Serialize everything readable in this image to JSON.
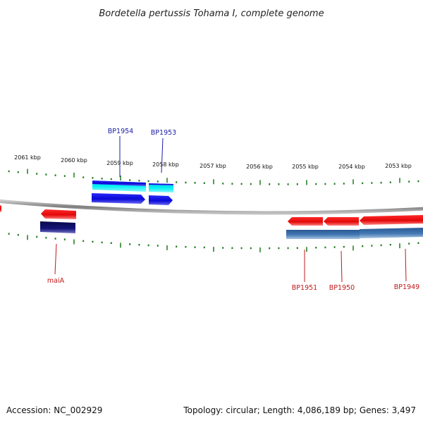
{
  "title": "Bordetella pertussis Tohama I, complete genome",
  "footer": {
    "accession": "Accession: NC_002929",
    "summary": "Topology: circular; Length: 4,086,189 bp; Genes: 3,497"
  },
  "tick_labels": [
    "2061 kbp",
    "2060 kbp",
    "2059 kbp",
    "2058 kbp",
    "2057 kbp",
    "2056 kbp",
    "2055 kbp",
    "2054 kbp",
    "2053 kbp"
  ],
  "gene_labels": {
    "top": [
      "BP1954",
      "BP1953"
    ],
    "bottom": [
      "maiA",
      "BP1951",
      "BP1950",
      "BP1949"
    ]
  },
  "colors": {
    "forward_gene": "#0a0ae6",
    "forward_cds": "#00e8ee",
    "reverse_gene": "#ee0a0a",
    "reverse_cds_dark": "#101070",
    "reverse_cds_steel": "#3d6fa8",
    "backbone": "#8a8a8a",
    "tick": "#1a7a1a",
    "top_label": "#1a1aa8",
    "bottom_label": "#c01818"
  }
}
